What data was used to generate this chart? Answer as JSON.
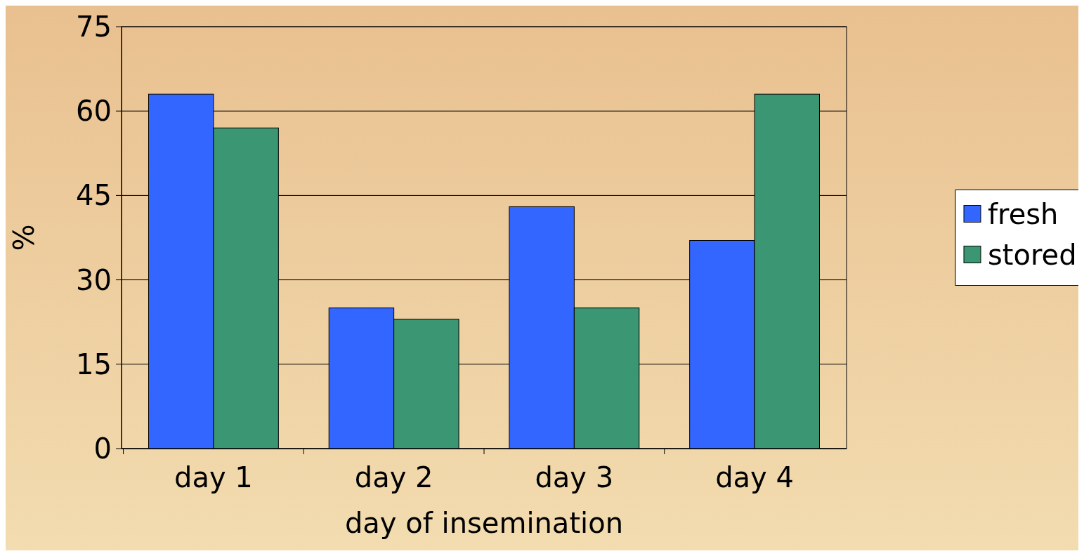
{
  "chart_data": {
    "type": "bar",
    "xlabel": "day of insemination",
    "ylabel": "%",
    "categories": [
      "day 1",
      "day 2",
      "day 3",
      "day 4"
    ],
    "series": [
      {
        "name": "fresh",
        "color": "#3366ff",
        "values": [
          63,
          25,
          43,
          37
        ]
      },
      {
        "name": "stored",
        "color": "#3a9673",
        "values": [
          57,
          23,
          25,
          63
        ]
      }
    ],
    "ylim": [
      0,
      75
    ],
    "yticks": [
      0,
      15,
      30,
      45,
      60,
      75
    ],
    "grid": "y",
    "legend": "right"
  }
}
